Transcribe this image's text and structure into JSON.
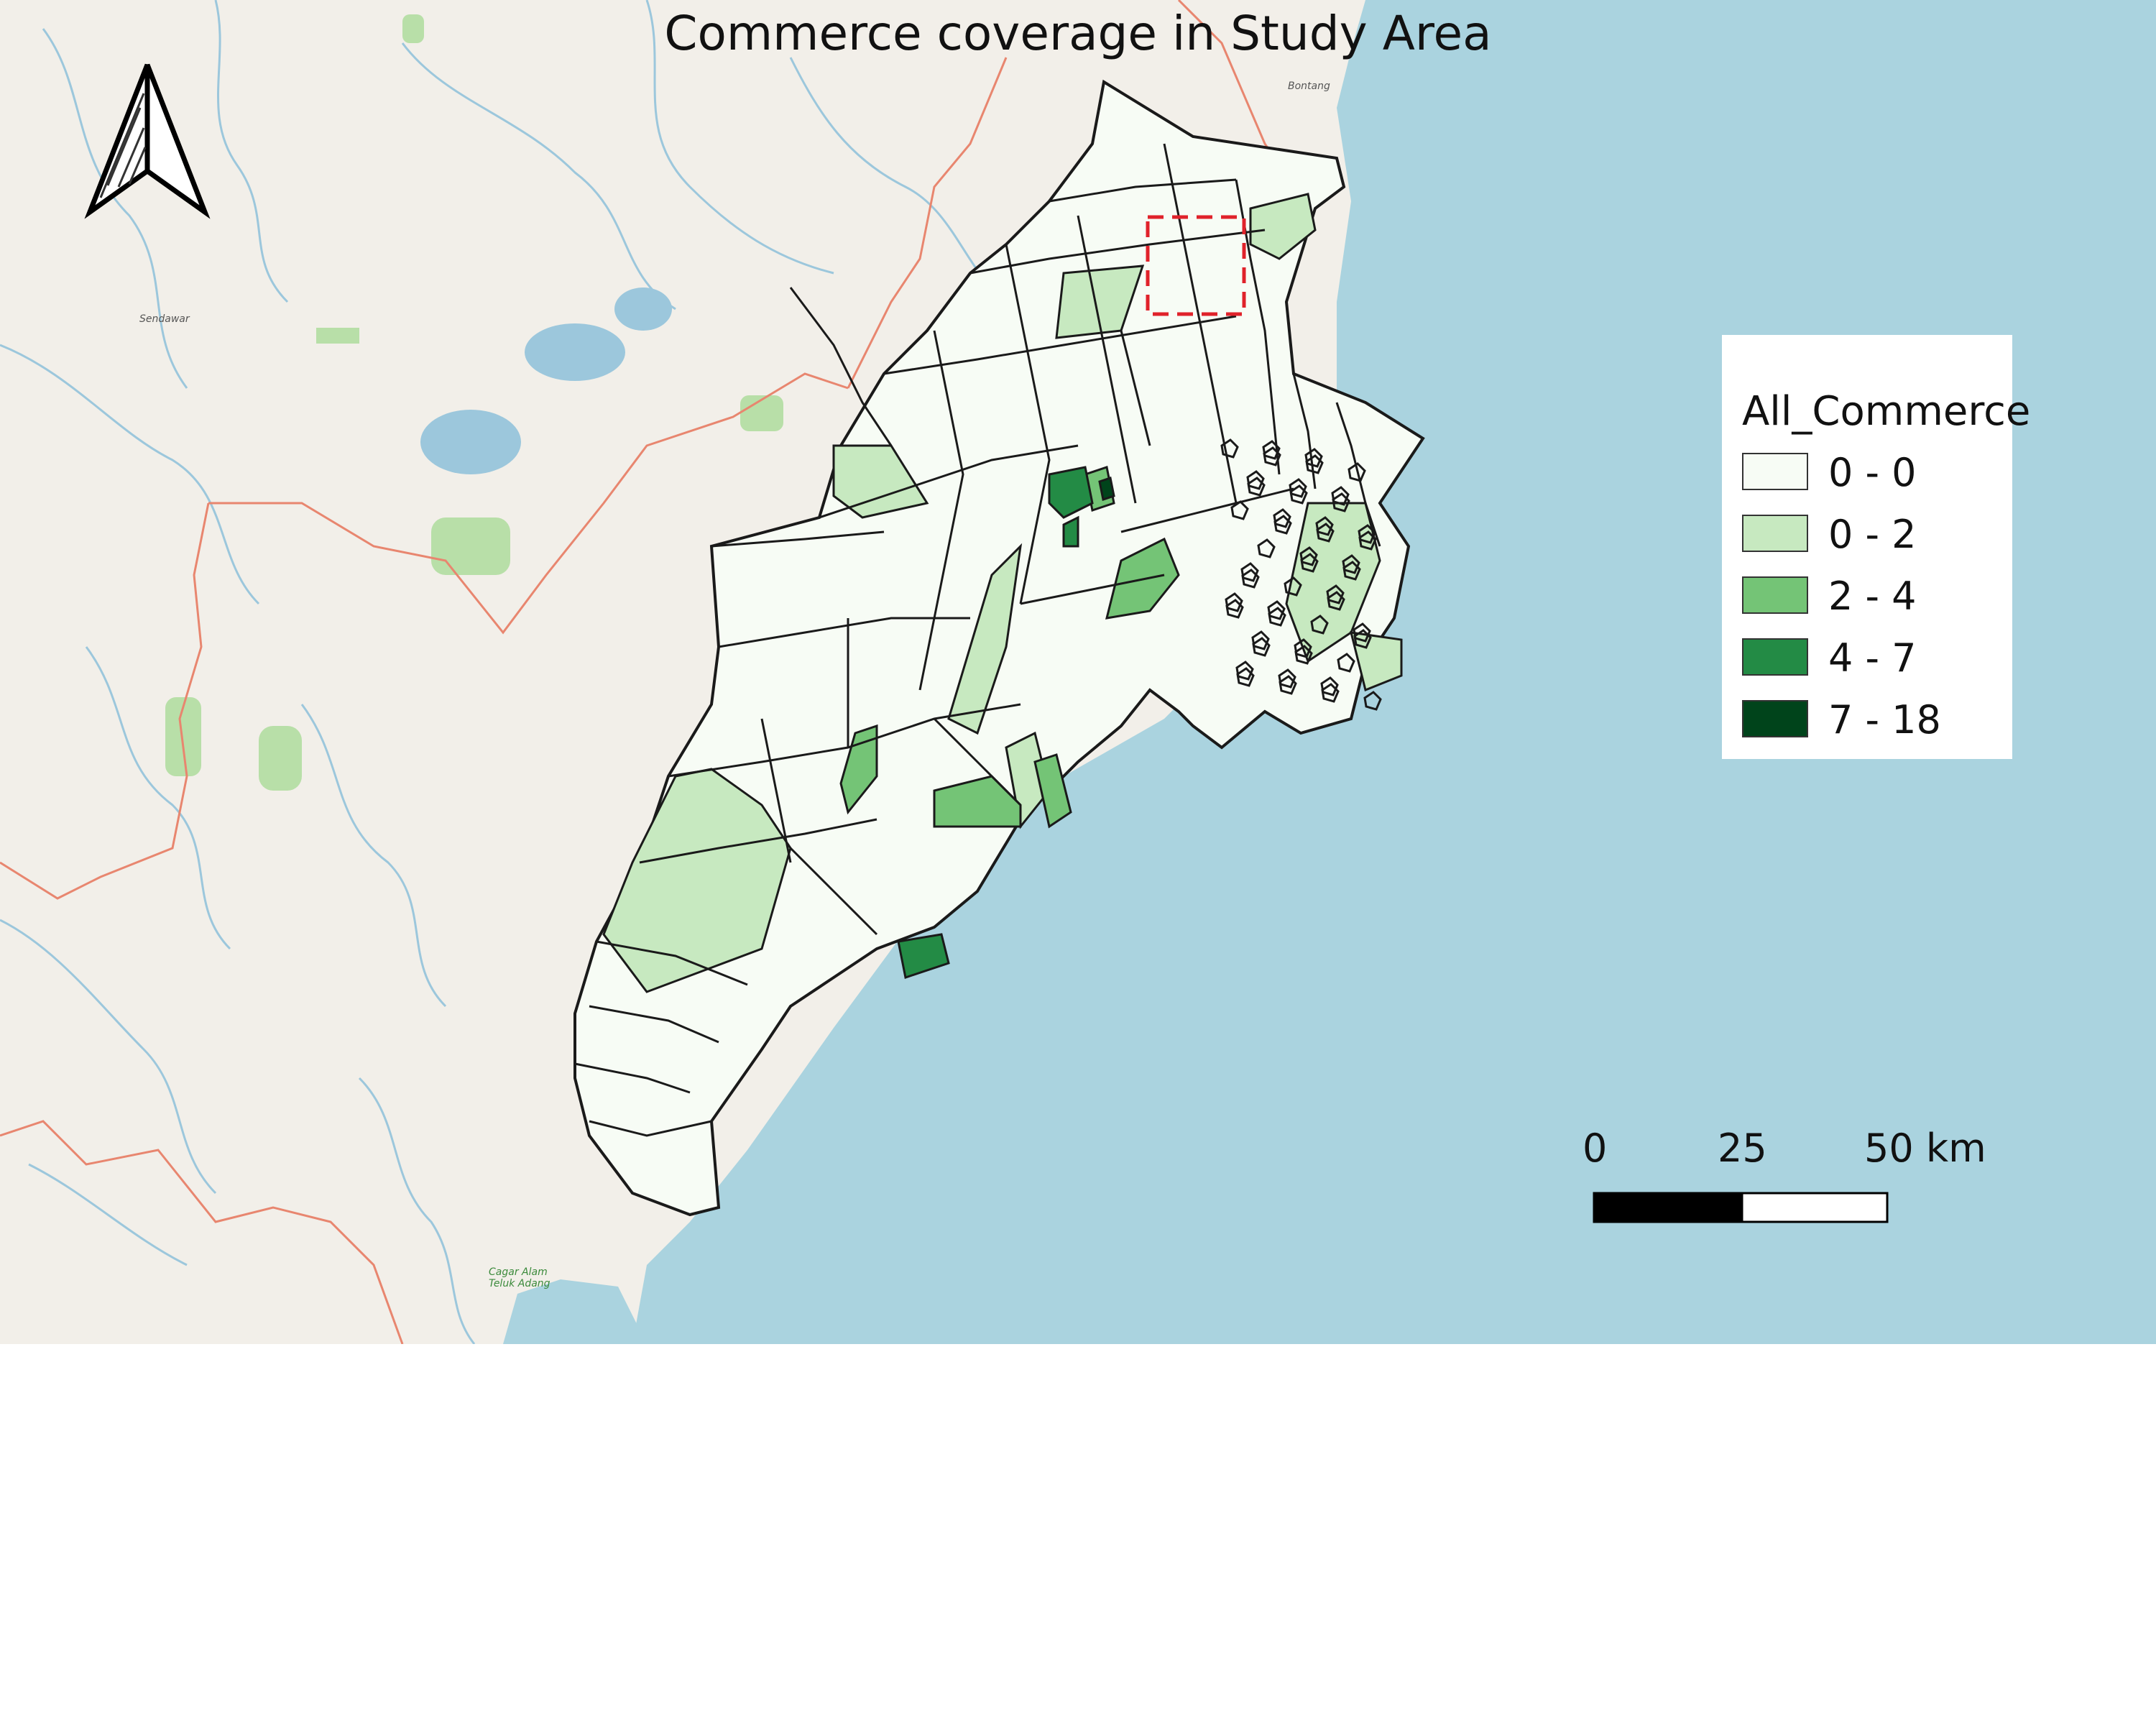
{
  "map": {
    "title": "Commerce coverage in Study Area",
    "colors": {
      "land": "#f2efe9",
      "sea": "#aad3df",
      "boundary_line": "#1a1a1a",
      "admin_line": "#e8866f",
      "river": "#9cc7dc",
      "highlight_box": "#e0222a"
    },
    "north_arrow_icon": "north-arrow-icon",
    "place_labels": [
      "Bontang",
      "Sendawar",
      "Cagar Alam Teluk Adang"
    ]
  },
  "legend": {
    "title": "All_Commerce",
    "classes": [
      {
        "label": "0 - 0",
        "color": "#f7fcf5"
      },
      {
        "label": "0 - 2",
        "color": "#c7e9c0"
      },
      {
        "label": "2 - 4",
        "color": "#74c476"
      },
      {
        "label": "4 - 7",
        "color": "#238b45"
      },
      {
        "label": "7 - 18",
        "color": "#00441b"
      }
    ]
  },
  "scale_bar": {
    "labels": [
      "0",
      "25",
      "50 km"
    ]
  }
}
